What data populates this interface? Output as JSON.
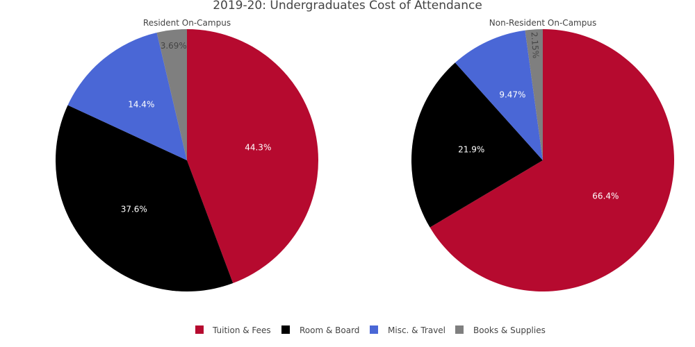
{
  "chart_data": {
    "type": "pie",
    "title": "2019-20: Undergraduates Cost of Attendance",
    "categories": [
      "Tuition & Fees",
      "Room & Board",
      "Misc. & Travel",
      "Books & Supplies"
    ],
    "colors": [
      "#b60a2f",
      "#000000",
      "#4a67d6",
      "#7f7f7f"
    ],
    "label_colors": [
      "#ffffff",
      "#ffffff",
      "#ffffff",
      "#444444"
    ],
    "legend_placement": "bottom-center",
    "pies": [
      {
        "name": "Resident On-Campus",
        "values": [
          44.3,
          37.6,
          14.4,
          3.69
        ],
        "labels": [
          "44.3%",
          "37.6%",
          "14.4%",
          "3.69%"
        ]
      },
      {
        "name": "Non-Resident On-Campus",
        "values": [
          66.4,
          21.9,
          9.47,
          2.15
        ],
        "labels": [
          "66.4%",
          "21.9%",
          "9.47%",
          "2.15%"
        ]
      }
    ]
  }
}
